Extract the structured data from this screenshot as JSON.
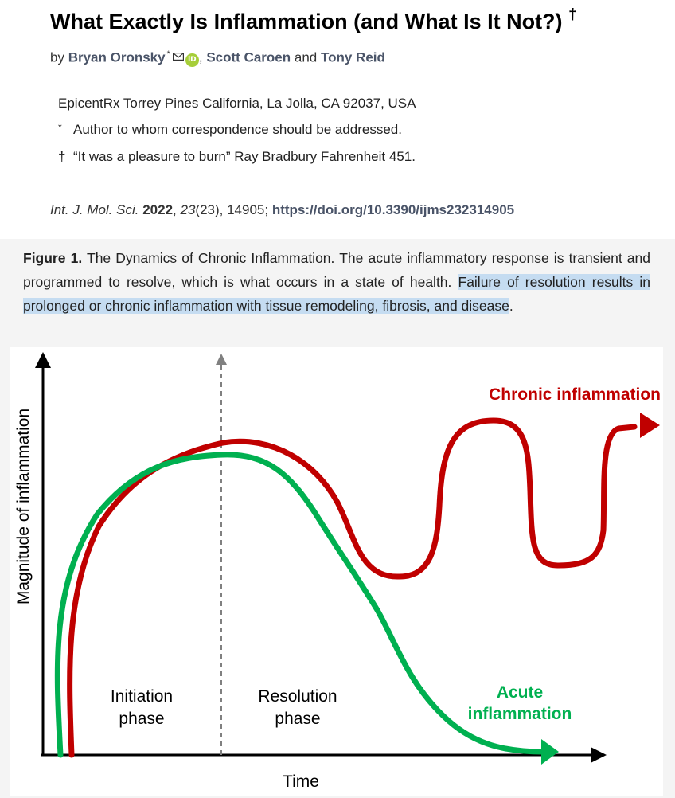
{
  "article": {
    "title": "What Exactly Is Inflammation (and What Is It Not?)",
    "title_mark": "†",
    "by_label": "by",
    "authors": [
      {
        "name": "Bryan Oronsky",
        "mark": "*"
      },
      {
        "name": "Scott Caroen"
      },
      {
        "name": "Tony Reid"
      }
    ],
    "and_label": "and",
    "affiliation": "EpicentRx Torrey Pines California, La Jolla, CA 92037, USA",
    "notes": [
      {
        "mark": "*",
        "text": "Author to whom correspondence should be addressed."
      },
      {
        "mark": "†",
        "text": "“It was a pleasure to burn” Ray Bradbury Fahrenheit 451."
      }
    ],
    "citation": {
      "journal": "Int. J. Mol. Sci.",
      "year": "2022",
      "volume": "23",
      "issue": "(23)",
      "article_no": ", 14905;",
      "doi": "https://doi.org/10.3390/ijms232314905"
    }
  },
  "figure": {
    "label": "Figure 1.",
    "caption_plain": " The Dynamics of Chronic Inflammation. The acute inflammatory response is transient and programmed to resolve, which is what occurs in a state of health. ",
    "caption_highlighted": "Failure of resolution results in prolonged or chronic inflammation with tissue remodeling, fibrosis, and disease",
    "caption_end": "."
  },
  "colors": {
    "chronic": "#c00000",
    "acute": "#00b050",
    "link": "#4a5468",
    "highlight": "#c5dcf1"
  },
  "icons": [
    "mail-icon",
    "orcid-icon"
  ],
  "chart_data": {
    "type": "line",
    "xlabel": "Time",
    "ylabel": "Magnitude of inflammation",
    "grid": false,
    "phases": [
      "Initiation phase",
      "Resolution phase"
    ],
    "series": [
      {
        "name": "Chronic inflammation",
        "color": "#c00000"
      },
      {
        "name": "Acute inflammation",
        "color": "#00b050"
      }
    ]
  }
}
